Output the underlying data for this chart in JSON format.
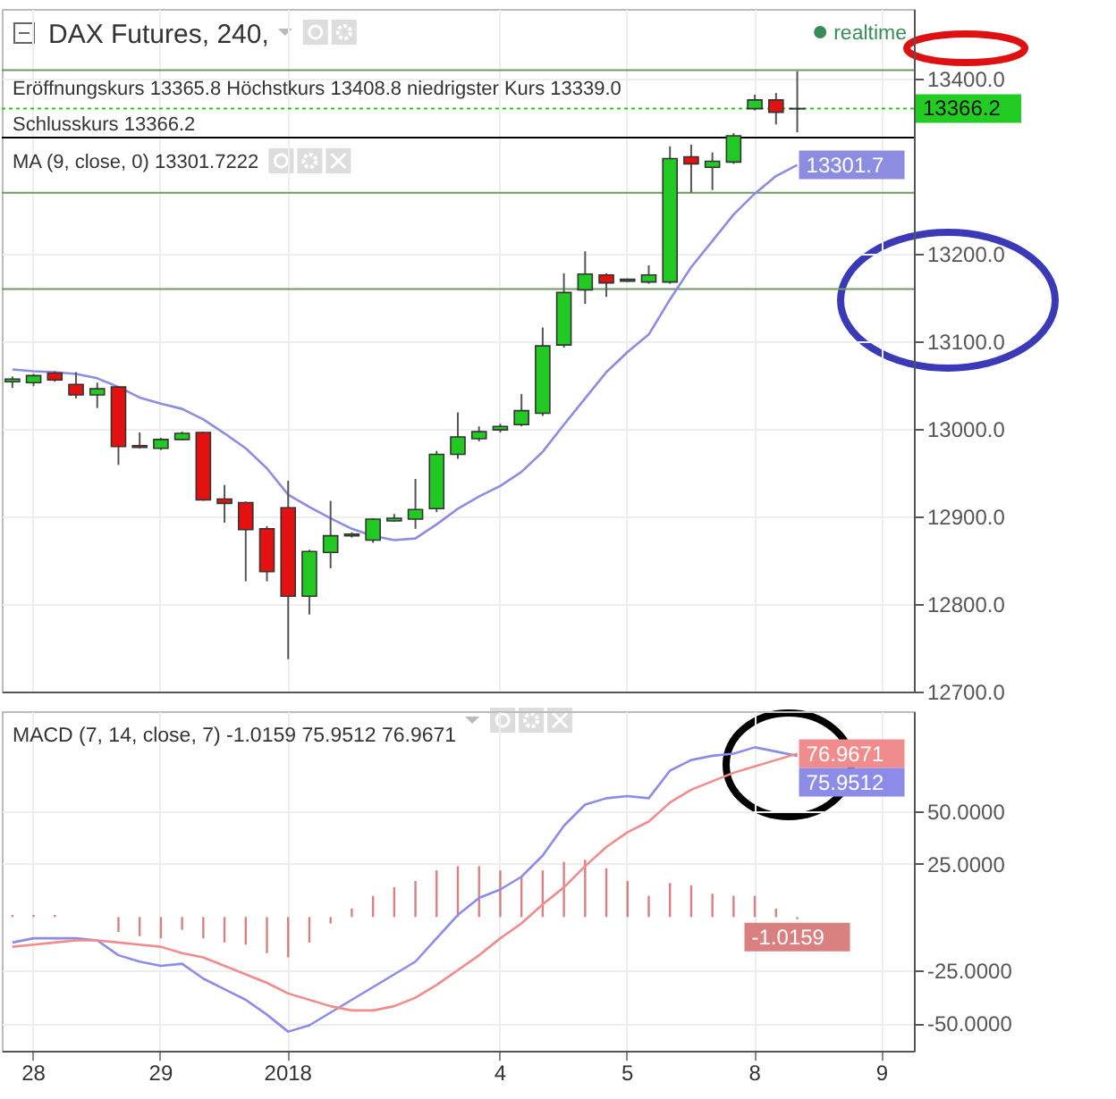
{
  "chart_data": [
    {
      "type": "candlestick",
      "title": "DAX Futures, 240,",
      "subtitle": "realtime",
      "annotations": [
        "Eröffnungskurs 13365.8 Höchstkurs 13408.8 niedrigster Kurs 13339.0",
        "Schlusskurs 13366.2",
        "MA (9, close, 0) 13301.7222"
      ],
      "categories": [
        null,
        "28",
        null,
        null,
        null,
        null,
        null,
        "29",
        null,
        null,
        null,
        null,
        null,
        "2018",
        null,
        null,
        null,
        null,
        null,
        null,
        null,
        null,
        null,
        "4",
        null,
        null,
        null,
        null,
        null,
        "5",
        null,
        null,
        null,
        null,
        null,
        "8",
        null,
        null,
        null,
        null,
        null,
        "9",
        null
      ],
      "ohlc": [
        [
          13054,
          13060,
          13047,
          13057
        ],
        [
          13053,
          13063,
          13049,
          13061
        ],
        [
          13064,
          13066,
          13054,
          13056
        ],
        [
          13051,
          13065,
          13035,
          13039
        ],
        [
          13039,
          13053,
          13024,
          13046
        ],
        [
          13048,
          13048,
          12959,
          12980
        ],
        [
          12981,
          12996,
          12978,
          12979
        ],
        [
          12978,
          12990,
          12976,
          12988
        ],
        [
          12988,
          12997,
          12987,
          12995
        ],
        [
          12996,
          12997,
          12918,
          12919
        ],
        [
          12920,
          12936,
          12893,
          12915
        ],
        [
          12916,
          12917,
          12826,
          12885
        ],
        [
          12886,
          12889,
          12826,
          12837
        ],
        [
          12910,
          12941,
          12737,
          12809
        ],
        [
          12809,
          12862,
          12788,
          12860
        ],
        [
          12859,
          12918,
          12841,
          12878
        ],
        [
          12878,
          12882,
          12876,
          12880
        ],
        [
          12873,
          12898,
          12870,
          12897
        ],
        [
          12895,
          12903,
          12894,
          12898
        ],
        [
          12897,
          12943,
          12886,
          12908
        ],
        [
          12909,
          12975,
          12905,
          12971
        ],
        [
          12971,
          13019,
          12966,
          12991
        ],
        [
          12989,
          13003,
          12986,
          12997
        ],
        [
          12999,
          13006,
          12996,
          13003
        ],
        [
          13005,
          13040,
          13003,
          13021
        ],
        [
          13018,
          13116,
          13015,
          13095
        ],
        [
          13096,
          13178,
          13093,
          13156
        ],
        [
          13159,
          13203,
          13143,
          13177
        ],
        [
          13176,
          13178,
          13151,
          13167
        ],
        [
          13169,
          13172,
          13168,
          13171
        ],
        [
          13168,
          13187,
          13166,
          13176
        ],
        [
          13168,
          13323,
          13166,
          13309
        ],
        [
          13311,
          13325,
          13270,
          13303
        ],
        [
          13299,
          13316,
          13273,
          13306
        ],
        [
          13305,
          13338,
          13303,
          13335
        ],
        [
          13366,
          13382,
          13364,
          13376
        ],
        [
          13376,
          13384,
          13348,
          13362
        ],
        [
          13365.8,
          13408.8,
          13339.0,
          13366.2
        ],
        null,
        null,
        null,
        null,
        null
      ],
      "series": [
        {
          "type": "line",
          "color": "#8c8ce0",
          "values": [
            13068,
            13066,
            13065,
            13063,
            13058,
            13048,
            13036,
            13029,
            13023,
            13011,
            12995,
            12978,
            12955,
            12925,
            12911,
            12898,
            12886,
            12878,
            12873,
            12875,
            12891,
            12909,
            12923,
            12935,
            12951,
            12974,
            13005,
            13035,
            13065,
            13088,
            13108,
            13148,
            13185,
            13215,
            13245,
            13269,
            13289,
            13301.7222,
            null,
            null,
            null,
            null,
            null
          ],
          "value_labels": [
            null,
            null,
            null,
            null,
            null,
            null,
            null,
            null,
            null,
            null,
            null,
            null,
            null,
            null,
            null,
            null,
            null,
            null,
            null,
            null,
            null,
            null,
            null,
            null,
            null,
            null,
            null,
            null,
            null,
            null,
            null,
            null,
            null,
            null,
            null,
            null,
            null,
            "13301.7",
            null,
            null,
            null,
            null,
            null
          ]
        }
      ],
      "ref_lines": [
        {
          "axis": "y",
          "value": 13366.2,
          "label": "13366.2",
          "color": "#22cc22",
          "line_style": "dotted"
        },
        {
          "axis": "y",
          "value": 13160,
          "color": "#6f9a62",
          "line_style": "solid"
        },
        {
          "axis": "y",
          "value": 13270,
          "color": "#6f9a62",
          "line_style": "solid"
        },
        {
          "axis": "y",
          "value": 13333,
          "color": "#000000",
          "line_style": "solid"
        },
        {
          "axis": "y",
          "value": 13410,
          "color": "#6f9a62",
          "line_style": "solid"
        }
      ],
      "ylim": [
        12700,
        13480
      ],
      "yticks": [
        {
          "value": 12700,
          "label": "12700.0"
        },
        {
          "value": 12800,
          "label": "12800.0"
        },
        {
          "value": 12900,
          "label": "12900.0"
        },
        {
          "value": 13000,
          "label": "13000.0"
        },
        {
          "value": 13100,
          "label": "13100.0"
        },
        {
          "value": 13200,
          "label": "13200.0"
        },
        {
          "value": 13400,
          "label": "13400.0"
        }
      ],
      "grid": true,
      "tick_labels": "y"
    },
    {
      "type": "line",
      "title": "MACD (7, 14, close, 7) -1.0159 75.9512 76.9671",
      "categories": [
        null,
        "28",
        null,
        null,
        null,
        null,
        null,
        "29",
        null,
        null,
        null,
        null,
        null,
        "2018",
        null,
        null,
        null,
        null,
        null,
        null,
        null,
        null,
        null,
        "4",
        null,
        null,
        null,
        null,
        null,
        "5",
        null,
        null,
        null,
        null,
        null,
        "8",
        null,
        null,
        null,
        null,
        null,
        "9",
        null
      ],
      "series": [
        {
          "type": "bar",
          "color": "#d98080",
          "values": [
            1,
            1,
            1,
            0,
            0,
            -7,
            -9,
            -10,
            -6,
            -10,
            -12,
            -13,
            -17,
            -19,
            -12,
            -3,
            4,
            10,
            14,
            17,
            22,
            24,
            24,
            22,
            19,
            22,
            26,
            27,
            23,
            17,
            10,
            16,
            15,
            11,
            10,
            10,
            4,
            -1.0159,
            null,
            null,
            null,
            null,
            null
          ],
          "value_labels": [
            null,
            null,
            null,
            null,
            null,
            null,
            null,
            null,
            null,
            null,
            null,
            null,
            null,
            null,
            null,
            null,
            null,
            null,
            null,
            null,
            null,
            null,
            null,
            null,
            null,
            null,
            null,
            null,
            null,
            null,
            null,
            null,
            null,
            null,
            null,
            null,
            null,
            "-1.0159",
            null,
            null,
            null,
            null,
            null
          ]
        },
        {
          "type": "line",
          "color": "#8c8ce8",
          "values": [
            -12,
            -10,
            -10,
            -10,
            -11,
            -18,
            -21,
            -23,
            -22,
            -29,
            -34,
            -39,
            -46,
            -54,
            -51,
            -45,
            -39,
            -33,
            -27,
            -21,
            -10,
            1,
            9,
            13,
            19,
            29,
            43,
            53,
            56,
            57,
            56,
            69,
            74,
            76,
            77,
            80,
            78,
            75.9512,
            null,
            null,
            null,
            null,
            null
          ],
          "value_labels": [
            null,
            null,
            null,
            null,
            null,
            null,
            null,
            null,
            null,
            null,
            null,
            null,
            null,
            null,
            null,
            null,
            null,
            null,
            null,
            null,
            null,
            null,
            null,
            null,
            null,
            null,
            null,
            null,
            null,
            null,
            null,
            null,
            null,
            null,
            null,
            null,
            null,
            "75.9512",
            null,
            null,
            null,
            null,
            null
          ]
        },
        {
          "type": "line",
          "color": "#f08c8c",
          "values": [
            -14,
            -13,
            -12,
            -11,
            -11,
            -12,
            -13,
            -14,
            -17,
            -19,
            -23,
            -27,
            -31,
            -36,
            -39,
            -42,
            -44,
            -44,
            -42,
            -38,
            -32,
            -25,
            -18,
            -10,
            -3,
            6,
            14,
            24,
            33,
            40,
            45,
            54,
            60,
            64,
            68,
            71,
            74,
            76.9671,
            null,
            null,
            null,
            null,
            null
          ],
          "value_labels": [
            null,
            null,
            null,
            null,
            null,
            null,
            null,
            null,
            null,
            null,
            null,
            null,
            null,
            null,
            null,
            null,
            null,
            null,
            null,
            null,
            null,
            null,
            null,
            null,
            null,
            null,
            null,
            null,
            null,
            null,
            null,
            null,
            null,
            null,
            null,
            null,
            null,
            "76.9671",
            null,
            null,
            null,
            null,
            null
          ]
        }
      ],
      "ylim": [
        -63,
        97
      ],
      "yticks": [
        {
          "value": -50,
          "label": "-50.0000"
        },
        {
          "value": -25,
          "label": "-25.0000"
        },
        {
          "value": 25,
          "label": "25.0000"
        },
        {
          "value": 50,
          "label": "50.0000"
        }
      ],
      "grid": true
    }
  ]
}
